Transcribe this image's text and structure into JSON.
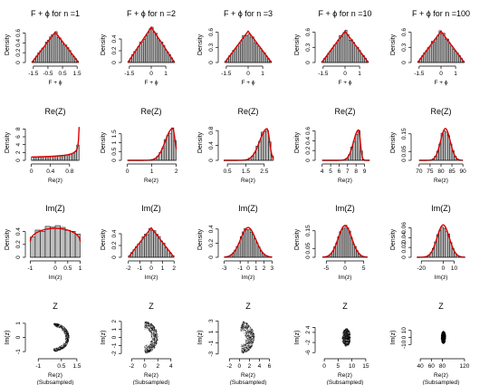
{
  "figure": {
    "row_titles": {
      "phase": [
        "F + ϕ for n =1",
        "F + ϕ for n =2",
        "F + ϕ for n =3",
        "F + ϕ for n =10",
        "F + ϕ for n =100"
      ],
      "re": "Re(Z)",
      "im": "Im(Z)",
      "z": "Z"
    },
    "row_xlabels": {
      "phase": "F + ϕ",
      "re": "Re(z)",
      "im": "Im(z)",
      "z": "Re(z)"
    },
    "row_ylabels": {
      "phase": "Density",
      "re": "Density",
      "im": "Density",
      "z": "Im(z)"
    },
    "subsample_note": "(Subsampled)",
    "colors": {
      "bars": "#bebebe",
      "bar_border": "#000000",
      "density": "#dd0000",
      "points": "#000000"
    }
  },
  "chart_data": [
    {
      "type": "bar",
      "title": "F + ϕ for n =1",
      "xlabel": "F + ϕ",
      "ylabel": "Density",
      "xticks": [
        -1.5,
        -0.5,
        0.5,
        1.5
      ],
      "yticks": [
        0.0,
        0.2,
        0.4,
        0.6
      ],
      "xlim": [
        -1.8,
        1.8
      ],
      "ylim": [
        0,
        0.72
      ],
      "bins": {
        "start": -1.6,
        "end": 1.6,
        "count": 24
      },
      "shape": "triangular",
      "peak": 0.62,
      "density_curve": "triangle",
      "series_color": "#dd0000"
    },
    {
      "type": "bar",
      "title": "F + ϕ for n =2",
      "xlabel": "F + ϕ",
      "ylabel": "Density",
      "xticks": [
        -1.5,
        0.0,
        1.0
      ],
      "yticks": [
        0.0,
        0.2,
        0.4
      ],
      "xlim": [
        -1.8,
        1.8
      ],
      "ylim": [
        0,
        0.6
      ],
      "bins": {
        "start": -1.6,
        "end": 1.6,
        "count": 24
      },
      "shape": "triangular",
      "peak": 0.6,
      "density_curve": "triangle"
    },
    {
      "type": "bar",
      "title": "F + ϕ for n =3",
      "xlabel": "F + ϕ",
      "ylabel": "Density",
      "xticks": [
        -1.5,
        0.0,
        1.0
      ],
      "yticks": [
        0.0,
        0.3,
        0.6
      ],
      "xlim": [
        -1.8,
        1.8
      ],
      "ylim": [
        0,
        0.7
      ],
      "bins": {
        "start": -1.6,
        "end": 1.6,
        "count": 24
      },
      "shape": "triangular",
      "peak": 0.62,
      "density_curve": "triangle"
    },
    {
      "type": "bar",
      "title": "F + ϕ for n =10",
      "xlabel": "F + ϕ",
      "ylabel": "Density",
      "xticks": [
        -1.5,
        0.0,
        1.0
      ],
      "yticks": [
        0.0,
        0.3,
        0.6
      ],
      "xlim": [
        -1.8,
        1.8
      ],
      "ylim": [
        0,
        0.7
      ],
      "bins": {
        "start": -1.6,
        "end": 1.6,
        "count": 24
      },
      "shape": "triangular",
      "peak": 0.62,
      "density_curve": "triangle"
    },
    {
      "type": "bar",
      "title": "F + ϕ for n =100",
      "xlabel": "F + ϕ",
      "ylabel": "Density",
      "xticks": [
        -1.5,
        0.0,
        1.0
      ],
      "yticks": [
        0.0,
        0.3,
        0.6
      ],
      "xlim": [
        -1.8,
        1.8
      ],
      "ylim": [
        0,
        0.7
      ],
      "bins": {
        "start": -1.6,
        "end": 1.6,
        "count": 24
      },
      "shape": "triangular",
      "peak": 0.62,
      "density_curve": "triangle"
    },
    {
      "type": "bar",
      "title": "Re(Z)",
      "xlabel": "Re(z)",
      "ylabel": "Density",
      "xticks": [
        0.0,
        0.4,
        0.8
      ],
      "yticks": [
        0,
        2,
        4,
        6,
        8
      ],
      "xlim": [
        -0.05,
        1.05
      ],
      "ylim": [
        0,
        9
      ],
      "bins": {
        "start": 0.0,
        "end": 1.0,
        "count": 20
      },
      "shape": "arcsine_right",
      "peak": 8.5,
      "density_curve": "smooth"
    },
    {
      "type": "bar",
      "title": "Re(Z)",
      "xlabel": "Re(z)",
      "ylabel": "Density",
      "xticks": [
        0.0,
        1.0,
        2.0
      ],
      "yticks": [
        0.0,
        0.5,
        1.0,
        1.5
      ],
      "xlim": [
        -0.1,
        2.05
      ],
      "ylim": [
        0,
        2.0
      ],
      "bins": {
        "start": 0.0,
        "end": 2.0,
        "count": 20
      },
      "shape": "skew_left",
      "mode": 1.85,
      "sd": 0.3,
      "peak": 1.8,
      "density_curve": "smooth"
    },
    {
      "type": "bar",
      "title": "Re(Z)",
      "xlabel": "Re(z)",
      "ylabel": "Density",
      "xticks": [
        0.5,
        1.5,
        2.5
      ],
      "yticks": [
        0.0,
        0.4,
        0.8
      ],
      "xlim": [
        0.2,
        3.05
      ],
      "ylim": [
        0,
        0.95
      ],
      "bins": {
        "start": 0.3,
        "end": 3.0,
        "count": 20
      },
      "shape": "skew_left",
      "mode": 2.65,
      "sd": 0.4,
      "peak": 0.85,
      "density_curve": "smooth"
    },
    {
      "type": "bar",
      "title": "Re(Z)",
      "xlabel": "Re(z)",
      "ylabel": "Density",
      "xticks": [
        4,
        5,
        6,
        7,
        8,
        9
      ],
      "yticks": [
        0.0,
        0.2,
        0.4,
        0.6
      ],
      "xlim": [
        3.6,
        9.8
      ],
      "ylim": [
        0,
        0.72
      ],
      "bins": {
        "start": 4.0,
        "end": 9.6,
        "count": 20
      },
      "shape": "skew_left",
      "mode": 8.3,
      "sd": 0.6,
      "peak": 0.62,
      "density_curve": "smooth"
    },
    {
      "type": "bar",
      "title": "Re(Z)",
      "xlabel": "Re(z)",
      "ylabel": "Density",
      "xticks": [
        70,
        75,
        80,
        85,
        90
      ],
      "yticks": [
        0.0,
        0.05,
        0.15
      ],
      "xlim": [
        68,
        92
      ],
      "ylim": [
        0,
        0.2
      ],
      "bins": {
        "start": 70,
        "end": 90,
        "count": 20
      },
      "shape": "normal",
      "mode": 82,
      "sd": 2.2,
      "peak": 0.18,
      "density_curve": "smooth"
    },
    {
      "type": "bar",
      "title": "Im(Z)",
      "xlabel": "Im(z)",
      "ylabel": "Density",
      "xticks": [
        -1.0,
        0.0,
        0.5,
        1.0
      ],
      "yticks": [
        0.0,
        0.2,
        0.4
      ],
      "xlim": [
        -1.05,
        1.05
      ],
      "ylim": [
        0,
        0.55
      ],
      "bins": {
        "start": -1.0,
        "end": 1.0,
        "count": 10
      },
      "shape": "semicircle",
      "peak": 0.45,
      "density_curve": "smooth"
    },
    {
      "type": "bar",
      "title": "Im(Z)",
      "xlabel": "Im(z)",
      "ylabel": "Density",
      "xticks": [
        -2,
        -1,
        0,
        1,
        2
      ],
      "yticks": [
        0.0,
        0.2,
        0.4
      ],
      "xlim": [
        -2.3,
        2.3
      ],
      "ylim": [
        0,
        0.6
      ],
      "bins": {
        "start": -2.0,
        "end": 2.0,
        "count": 20
      },
      "shape": "triangular",
      "peak": 0.5,
      "density_curve": "smooth"
    },
    {
      "type": "bar",
      "title": "Im(Z)",
      "xlabel": "Im(z)",
      "ylabel": "Density",
      "xticks": [
        -3,
        -1,
        0,
        1,
        2,
        3
      ],
      "yticks": [
        0.0,
        0.2,
        0.4
      ],
      "xlim": [
        -3.3,
        3.3
      ],
      "ylim": [
        0,
        0.5
      ],
      "bins": {
        "start": -3.0,
        "end": 3.0,
        "count": 24
      },
      "shape": "normal",
      "mode": 0,
      "sd": 0.95,
      "peak": 0.42,
      "density_curve": "smooth"
    },
    {
      "type": "bar",
      "title": "Im(Z)",
      "xlabel": "Im(z)",
      "ylabel": "Density",
      "xticks": [
        -5,
        0,
        5
      ],
      "yticks": [
        0.0,
        0.05,
        0.15
      ],
      "xlim": [
        -7,
        7
      ],
      "ylim": [
        0,
        0.2
      ],
      "bins": {
        "start": -6,
        "end": 6,
        "count": 24
      },
      "shape": "normal",
      "mode": 0,
      "sd": 1.8,
      "peak": 0.18,
      "density_curve": "smooth"
    },
    {
      "type": "bar",
      "title": "Im(Z)",
      "xlabel": "Im(z)",
      "ylabel": "Density",
      "xticks": [
        -20,
        0,
        10
      ],
      "yticks": [
        0.0,
        0.02,
        0.04,
        0.06
      ],
      "xlim": [
        -26,
        22
      ],
      "ylim": [
        0,
        0.072
      ],
      "bins": {
        "start": -24,
        "end": 20,
        "count": 22
      },
      "shape": "normal",
      "mode": 0,
      "sd": 5.6,
      "peak": 0.066,
      "density_curve": "smooth"
    },
    {
      "type": "scatter",
      "title": "Z",
      "xlabel": "Re(z)",
      "ylabel": "Im(z)",
      "note": "(Subsampled)",
      "xticks": [
        -1.0,
        0.5,
        1.5
      ],
      "yticks": [
        -1.0,
        0.0,
        1.0
      ],
      "xlim": [
        -1.6,
        1.8
      ],
      "ylim": [
        -1.25,
        1.25
      ],
      "points": {
        "shape": "ring",
        "center": [
          0,
          0
        ],
        "r_in": 0.75,
        "r_out": 1.0,
        "theta_min": -90,
        "theta_max": 90
      }
    },
    {
      "type": "scatter",
      "title": "Z",
      "xlabel": "Re(z)",
      "ylabel": "Im(z)",
      "note": "(Subsampled)",
      "xticks": [
        -2,
        0,
        2,
        4
      ],
      "yticks": [
        -2,
        -1,
        0,
        1,
        2
      ],
      "xlim": [
        -3,
        5
      ],
      "ylim": [
        -2.2,
        2.2
      ],
      "points": {
        "shape": "ring",
        "center": [
          0,
          0
        ],
        "r_in": 1.0,
        "r_out": 2.0,
        "theta_min": -90,
        "theta_max": 90
      }
    },
    {
      "type": "scatter",
      "title": "Z",
      "xlabel": "Re(z)",
      "ylabel": "Im(z)",
      "note": "(Subsampled)",
      "xticks": [
        -2,
        0,
        2,
        4,
        6
      ],
      "yticks": [
        -3,
        -1,
        1,
        3
      ],
      "xlim": [
        -3.5,
        7
      ],
      "ylim": [
        -3.2,
        3.2
      ],
      "points": {
        "shape": "ring",
        "center": [
          0,
          0
        ],
        "r_in": 1.2,
        "r_out": 3.0,
        "theta_min": -80,
        "theta_max": 80
      }
    },
    {
      "type": "scatter",
      "title": "Z",
      "xlabel": "Re(z)",
      "ylabel": "Im(z)",
      "note": "(Subsampled)",
      "xticks": [
        0,
        5,
        10,
        15
      ],
      "yticks": [
        -6,
        -2,
        2,
        4
      ],
      "xlim": [
        -2,
        17
      ],
      "ylim": [
        -7,
        7
      ],
      "points": {
        "shape": "ellipse",
        "center": [
          8,
          0
        ],
        "rx": 1.5,
        "ry": 3.5
      }
    },
    {
      "type": "scatter",
      "title": "Z",
      "xlabel": "Re(z)",
      "ylabel": "Im(z)",
      "note": "(Subsampled)",
      "xticks": [
        40,
        60,
        80,
        120
      ],
      "yticks": [
        -10,
        0,
        10
      ],
      "xlim": [
        30,
        125
      ],
      "ylim": [
        -25,
        25
      ],
      "points": {
        "shape": "ellipse",
        "center": [
          82,
          0
        ],
        "rx": 4,
        "ry": 9
      }
    }
  ]
}
